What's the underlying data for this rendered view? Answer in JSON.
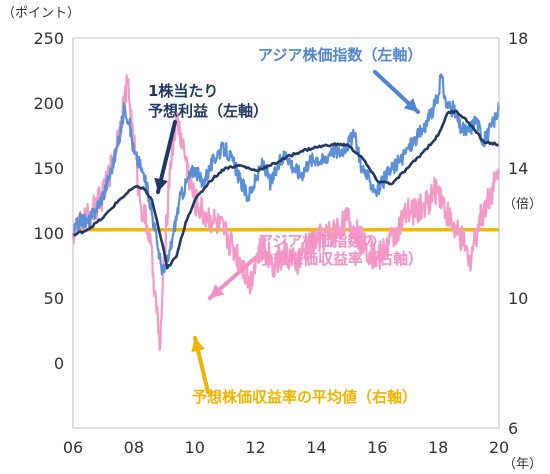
{
  "colors": {
    "asia_index": "#5b8fd6",
    "eps": "#1f3864",
    "per": "#f49ac9",
    "per_avg": "#f5b800",
    "ann_blue": "#4f86cf",
    "ann_navy": "#1f3864",
    "ann_pink": "#f48fc6",
    "ann_gold": "#f0b400"
  },
  "chart_data": {
    "type": "line",
    "left_axis_unit": "（ポイント）",
    "right_axis_unit": "（倍）",
    "x_axis_unit": "（年）",
    "x_ticks": [
      "06",
      "08",
      "10",
      "12",
      "14",
      "16",
      "18",
      "20"
    ],
    "left_ticks": [
      "250",
      "200",
      "150",
      "100",
      "50",
      "0"
    ],
    "right_ticks": [
      "18",
      "14",
      "10",
      "6"
    ],
    "left_ylim": [
      -50,
      250
    ],
    "right_ylim": [
      6,
      18
    ],
    "xlim": [
      2006,
      2020
    ],
    "grid": false,
    "annotations": {
      "asia_index": "アジア株価指数（左軸）",
      "eps_line1": "1株当たり",
      "eps_line2": "予想利益（左軸）",
      "per_line1": "アジア株価指数の",
      "per_line2": "予想株価収益率（右軸）",
      "per_avg": "予想株価収益率の平均値（右軸）"
    },
    "series": [
      {
        "key": "asia_index",
        "axis": "left",
        "x": [
          2006.0,
          2006.25,
          2006.5,
          2006.75,
          2007.0,
          2007.25,
          2007.5,
          2007.7,
          2007.85,
          2008.0,
          2008.25,
          2008.5,
          2008.75,
          2008.9,
          2009.0,
          2009.15,
          2009.3,
          2009.5,
          2009.75,
          2010.0,
          2010.25,
          2010.5,
          2010.75,
          2011.0,
          2011.25,
          2011.5,
          2011.75,
          2012.0,
          2012.25,
          2012.5,
          2012.75,
          2013.0,
          2013.25,
          2013.5,
          2013.75,
          2014.0,
          2014.25,
          2014.5,
          2014.75,
          2015.0,
          2015.25,
          2015.5,
          2015.75,
          2016.0,
          2016.25,
          2016.5,
          2016.75,
          2017.0,
          2017.25,
          2017.5,
          2017.75,
          2018.0,
          2018.1,
          2018.25,
          2018.5,
          2018.75,
          2019.0,
          2019.25,
          2019.5,
          2019.75,
          2020.0
        ],
        "y": [
          100,
          110,
          108,
          118,
          130,
          148,
          170,
          198,
          185,
          162,
          150,
          128,
          95,
          75,
          70,
          82,
          100,
          125,
          140,
          150,
          138,
          150,
          162,
          165,
          155,
          140,
          128,
          140,
          155,
          138,
          152,
          162,
          150,
          145,
          155,
          158,
          155,
          165,
          162,
          168,
          175,
          150,
          140,
          132,
          142,
          150,
          155,
          165,
          172,
          180,
          190,
          205,
          222,
          200,
          195,
          180,
          178,
          188,
          170,
          182,
          195
        ]
      },
      {
        "key": "eps",
        "axis": "left",
        "x": [
          2006.0,
          2006.5,
          2007.0,
          2007.5,
          2008.0,
          2008.3,
          2008.6,
          2008.9,
          2009.1,
          2009.4,
          2009.7,
          2010.0,
          2010.5,
          2011.0,
          2011.5,
          2012.0,
          2012.5,
          2013.0,
          2013.5,
          2014.0,
          2014.5,
          2015.0,
          2015.5,
          2016.0,
          2016.5,
          2017.0,
          2017.5,
          2018.0,
          2018.3,
          2018.6,
          2019.0,
          2019.5,
          2020.0
        ],
        "y": [
          98,
          103,
          112,
          125,
          135,
          135,
          125,
          95,
          73,
          82,
          108,
          125,
          140,
          150,
          152,
          148,
          152,
          158,
          163,
          166,
          168,
          168,
          158,
          140,
          138,
          150,
          162,
          175,
          192,
          194,
          185,
          170,
          168
        ]
      },
      {
        "key": "per",
        "axis": "right",
        "x": [
          2006.0,
          2006.3,
          2006.6,
          2007.0,
          2007.3,
          2007.6,
          2007.8,
          2008.0,
          2008.2,
          2008.5,
          2008.7,
          2008.85,
          2009.0,
          2009.2,
          2009.4,
          2009.6,
          2009.8,
          2010.0,
          2010.3,
          2010.6,
          2011.0,
          2011.3,
          2011.6,
          2011.8,
          2012.0,
          2012.3,
          2012.6,
          2013.0,
          2013.3,
          2013.6,
          2014.0,
          2014.5,
          2015.0,
          2015.3,
          2015.6,
          2016.0,
          2016.3,
          2016.6,
          2017.0,
          2017.5,
          2018.0,
          2018.3,
          2018.6,
          2018.9,
          2019.0,
          2019.3,
          2019.6,
          2020.0
        ],
        "y": [
          12.0,
          12.3,
          12.6,
          13.2,
          14.2,
          15.6,
          16.6,
          14.8,
          13.0,
          12.0,
          10.2,
          8.4,
          11.2,
          14.2,
          15.5,
          14.8,
          13.8,
          13.0,
          12.6,
          12.4,
          12.0,
          11.5,
          11.0,
          10.4,
          11.2,
          11.6,
          11.0,
          11.4,
          11.0,
          11.4,
          11.8,
          12.0,
          12.4,
          12.0,
          11.6,
          11.2,
          11.6,
          12.0,
          12.6,
          12.8,
          13.4,
          12.6,
          12.0,
          11.6,
          11.0,
          12.2,
          13.0,
          13.8
        ]
      },
      {
        "key": "per_avg",
        "axis": "right",
        "x": [
          2006.0,
          2020.0
        ],
        "y": [
          12.1,
          12.1
        ]
      }
    ]
  }
}
